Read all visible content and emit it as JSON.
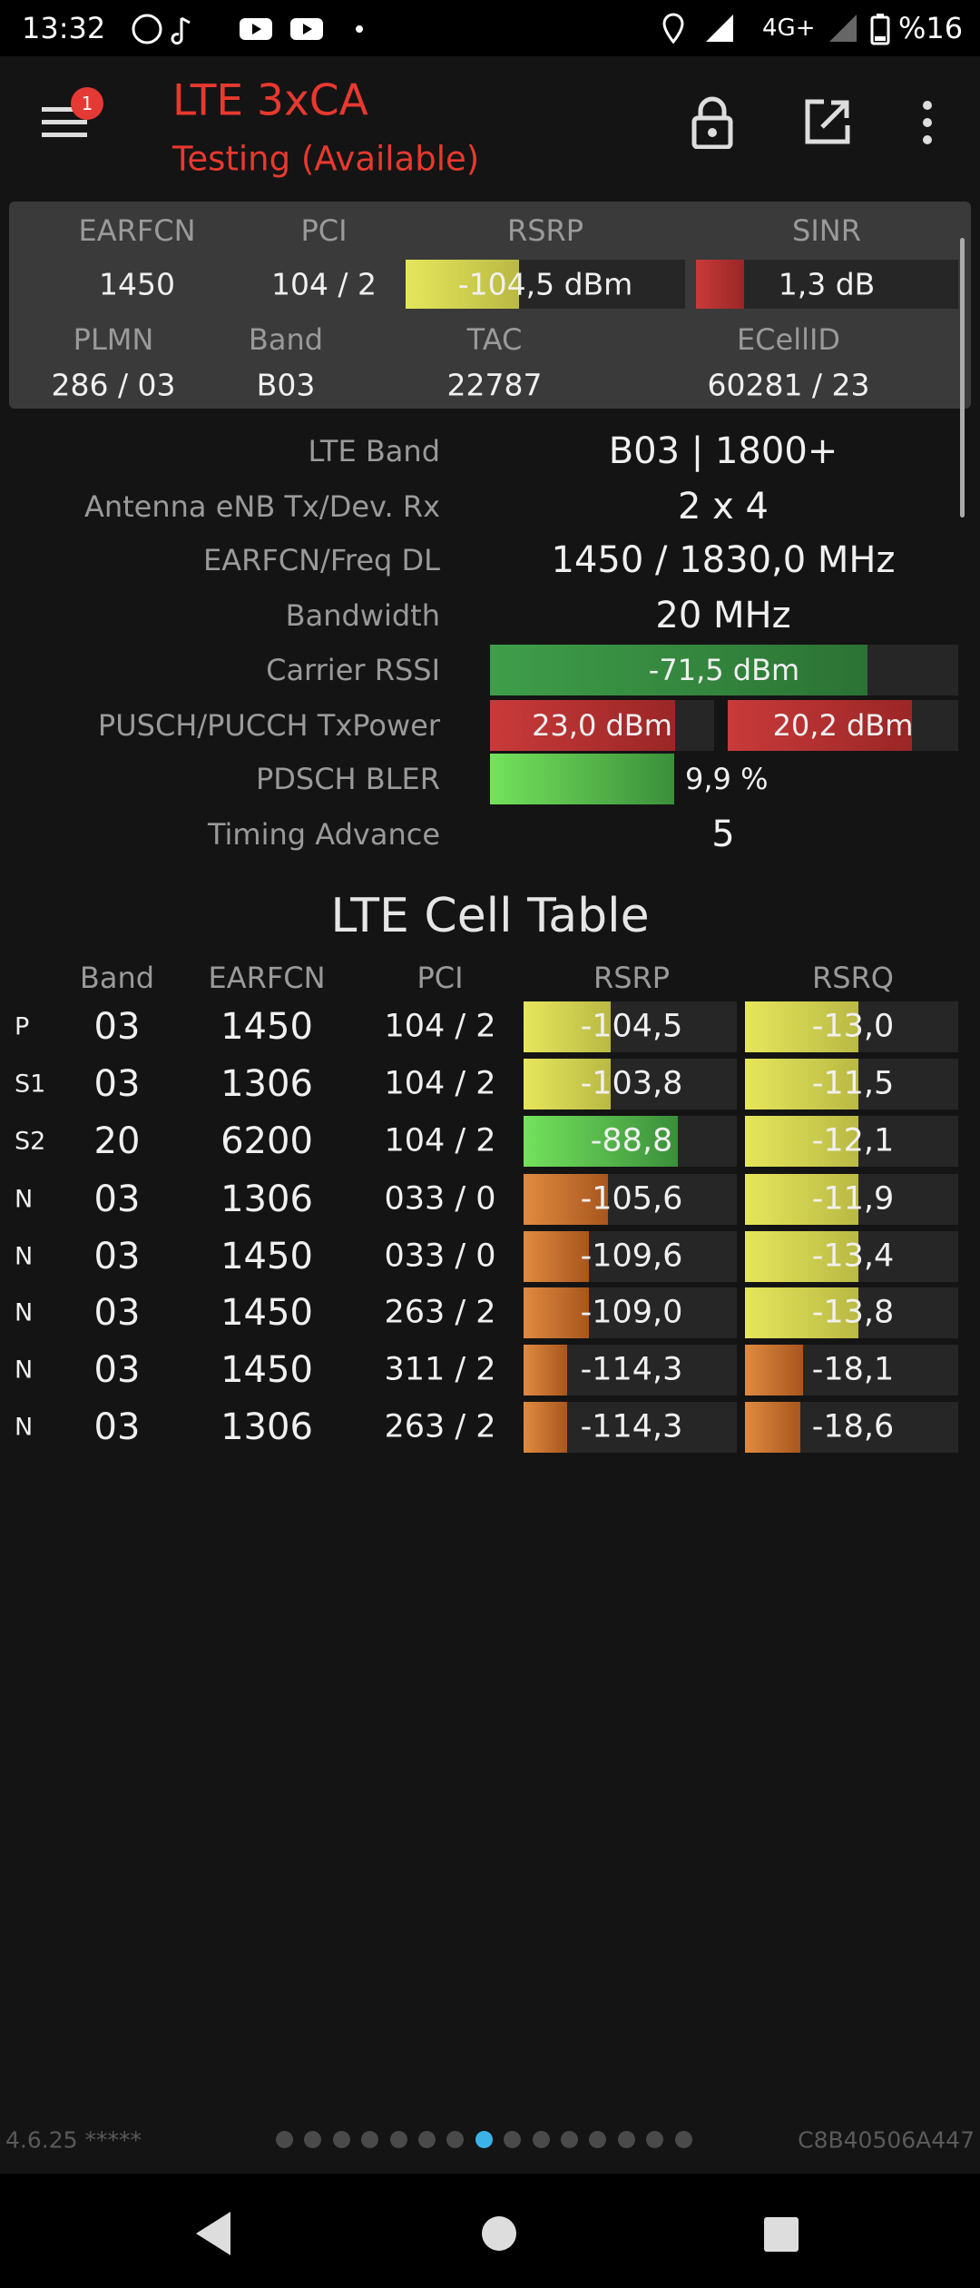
{
  "status_bar": {
    "time": "13:32",
    "network": "4G+",
    "battery": "%16"
  },
  "app_bar": {
    "badge": "1",
    "title": "LTE 3xCA",
    "subtitle": "Testing (Available)"
  },
  "summary": {
    "rows": [
      [
        {
          "label": "EARFCN",
          "value": "1450"
        },
        {
          "label": "PCI",
          "value": "104 / 2"
        },
        {
          "label": "RSRP",
          "value": "-104,5 dBm"
        },
        {
          "label": "SINR",
          "value": "1,3 dB"
        }
      ],
      [
        {
          "label": "PLMN",
          "value": "286 / 03"
        },
        {
          "label": "Band",
          "value": "B03"
        },
        {
          "label": "TAC",
          "value": "22787"
        },
        {
          "label": "ECellID",
          "value": "60281 / 23"
        }
      ]
    ]
  },
  "details": [
    {
      "label": "LTE Band",
      "values": [
        "B03 | 1800+"
      ]
    },
    {
      "label": "Antenna eNB Tx/Dev. Rx",
      "values": [
        "2 x 4"
      ]
    },
    {
      "label": "EARFCN/Freq DL",
      "values": [
        "1450 / 1830,0 MHz"
      ]
    },
    {
      "label": "Bandwidth",
      "values": [
        "20 MHz"
      ]
    },
    {
      "label": "Carrier RSSI",
      "values": [
        "-71,5 dBm"
      ]
    },
    {
      "label": "PUSCH/PUCCH TxPower",
      "values": [
        "23,0 dBm",
        "20,2 dBm"
      ]
    },
    {
      "label": "PDSCH BLER",
      "values": [
        "9,9 %"
      ]
    },
    {
      "label": "Timing Advance",
      "values": [
        "5"
      ]
    }
  ],
  "cell_table": {
    "title": "LTE Cell Table",
    "columns": [
      "Band",
      "EARFCN",
      "PCI",
      "RSRP",
      "RSRQ"
    ],
    "rows": [
      [
        "P",
        "03",
        "1450",
        "104 / 2",
        "-104,5",
        "-13,0"
      ],
      [
        "S1",
        "03",
        "1306",
        "104 / 2",
        "-103,8",
        "-11,5"
      ],
      [
        "S2",
        "20",
        "6200",
        "104 / 2",
        "-88,8",
        "-12,1"
      ],
      [
        "N",
        "03",
        "1306",
        "033 / 0",
        "-105,6",
        "-11,9"
      ],
      [
        "N",
        "03",
        "1450",
        "033 / 0",
        "-109,6",
        "-13,4"
      ],
      [
        "N",
        "03",
        "1450",
        "263 / 2",
        "-109,0",
        "-13,8"
      ],
      [
        "N",
        "03",
        "1450",
        "311 / 2",
        "-114,3",
        "-18,1"
      ],
      [
        "N",
        "03",
        "1306",
        "263 / 2",
        "-114,3",
        "-18,6"
      ]
    ]
  },
  "footer": {
    "version": "4.6.25 *****",
    "device_id": "C8B40506A447"
  }
}
